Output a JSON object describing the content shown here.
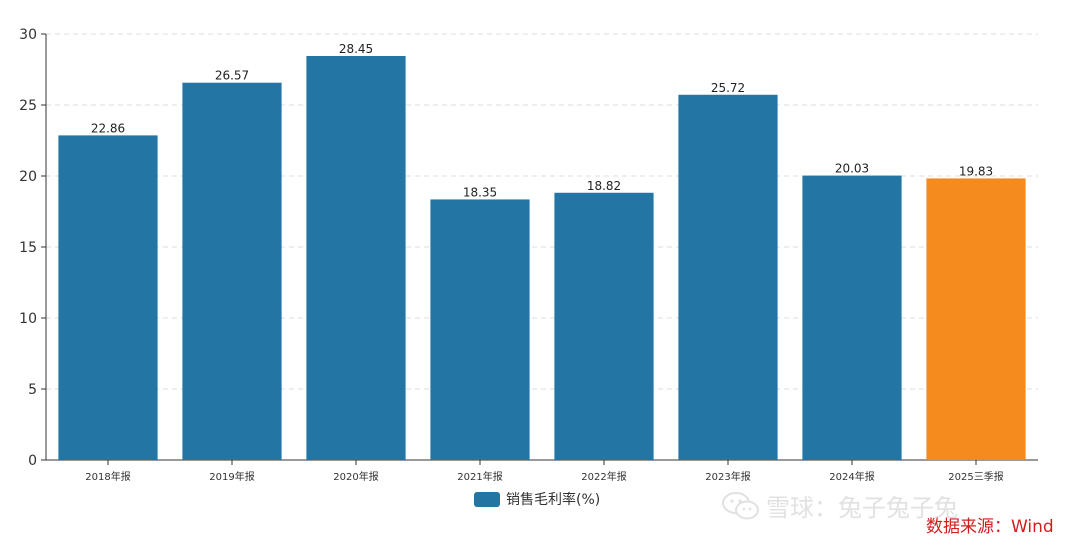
{
  "chart_data": {
    "type": "bar",
    "categories": [
      "2018年报",
      "2019年报",
      "2020年报",
      "2021年报",
      "2022年报",
      "2023年报",
      "2024年报",
      "2025三季报"
    ],
    "series": [
      {
        "name": "销售毛利率(%)",
        "values": [
          22.86,
          26.57,
          28.45,
          18.35,
          18.82,
          25.72,
          20.03,
          19.83
        ]
      }
    ],
    "data_labels": [
      "22.86",
      "26.57",
      "28.45",
      "18.35",
      "18.82",
      "25.72",
      "20.03",
      "19.83"
    ],
    "y_ticks": [
      "0",
      "5",
      "10",
      "15",
      "20",
      "25",
      "30"
    ],
    "ylim": [
      0,
      30
    ],
    "grid": true,
    "legend_position": "bottom-center",
    "highlight_index": 7
  },
  "colors": {
    "bar": "#2376a3",
    "highlight": "#f58a1f",
    "grid": "#dddddd",
    "axis": "#333333",
    "source_text": "#d21e1e"
  },
  "legend": {
    "label": "销售毛利率(%)"
  },
  "watermark": {
    "text": "雪球：兔子兔子兔",
    "icon": "wechat-icon"
  },
  "source": {
    "text": "数据来源：Wind"
  }
}
